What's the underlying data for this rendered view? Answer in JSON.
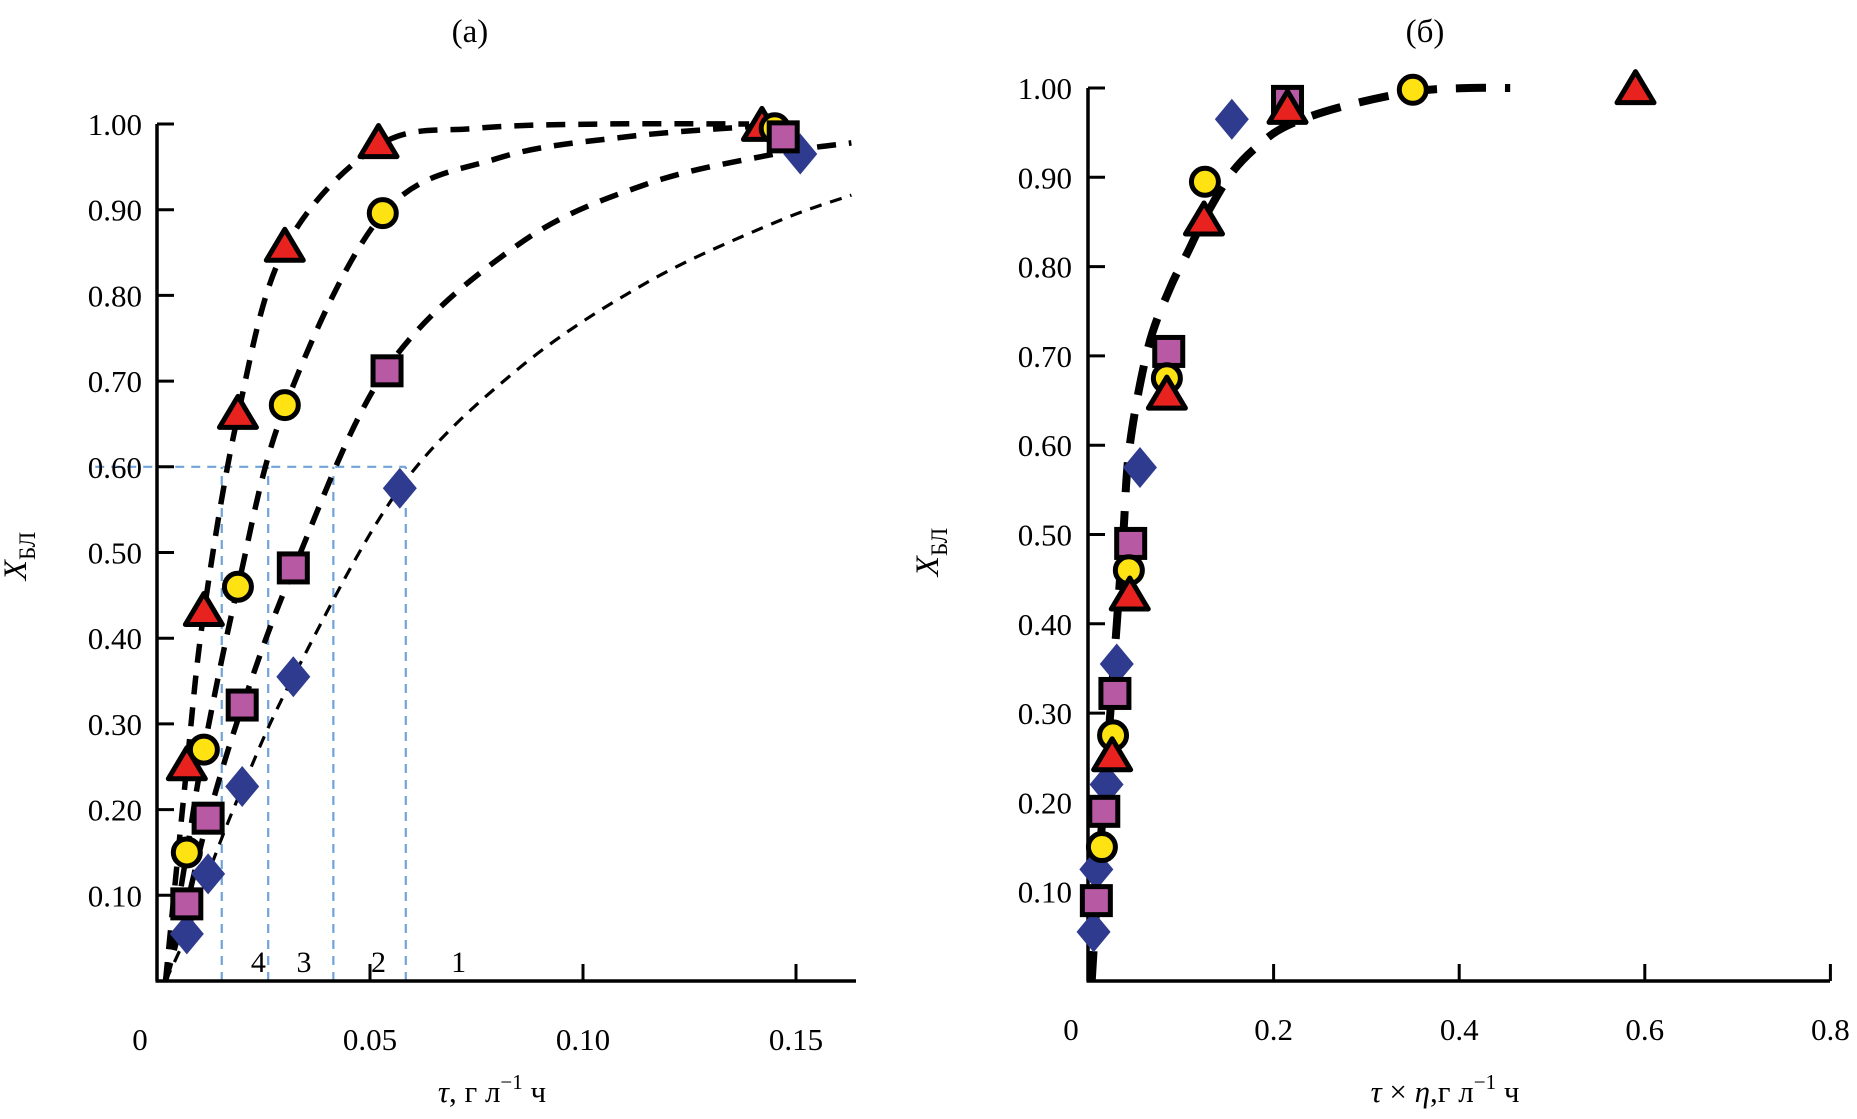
{
  "figure": {
    "background": "#ffffff",
    "colors": {
      "series1_diamond": "#2E3B8F",
      "series2_square": "#B859A4",
      "series3_circle": "#FFE212",
      "series4_triangle": "#E8231F",
      "curve": "#000000",
      "guide": "#6FA3D9",
      "axis": "#000000"
    }
  },
  "chart_data": [
    {
      "id": "a",
      "type": "scatter",
      "title": "(а)",
      "xlabel": "τ, г л⁻¹ ч",
      "xlabel_parts": {
        "tau": "τ",
        "pre": ", г л",
        "sup": "−1",
        "post": " ч"
      },
      "ylabel": "ХБЛ",
      "ylabel_parts": {
        "main": "X",
        "sub": "БЛ"
      },
      "xlim": [
        0,
        0.163
      ],
      "ylim": [
        0,
        1.0
      ],
      "grid": false,
      "legend": "none",
      "x_ticks": [
        {
          "v": 0,
          "label": "0",
          "mark": false
        },
        {
          "v": 0.05,
          "label": "0.05",
          "mark": true
        },
        {
          "v": 0.1,
          "label": "0.10",
          "mark": true
        },
        {
          "v": 0.15,
          "label": "0.15",
          "mark": true
        }
      ],
      "y_ticks": [
        {
          "v": 0.1,
          "label": "0.10"
        },
        {
          "v": 0.2,
          "label": "0.20"
        },
        {
          "v": 0.3,
          "label": "0.30"
        },
        {
          "v": 0.4,
          "label": "0.40"
        },
        {
          "v": 0.5,
          "label": "0.50"
        },
        {
          "v": 0.6,
          "label": "0.60"
        },
        {
          "v": 0.7,
          "label": "0.70"
        },
        {
          "v": 0.8,
          "label": "0.80"
        },
        {
          "v": 0.9,
          "label": "0.90"
        },
        {
          "v": 1.0,
          "label": "1.00"
        }
      ],
      "series": [
        {
          "name": "1",
          "marker": "diamond",
          "color": "#2E3B8F",
          "points": [
            [
              0.007,
              0.055
            ],
            [
              0.012,
              0.125
            ],
            [
              0.02,
              0.227
            ],
            [
              0.032,
              0.355
            ],
            [
              0.057,
              0.575
            ],
            [
              0.151,
              0.965
            ]
          ]
        },
        {
          "name": "2",
          "marker": "square",
          "color": "#B859A4",
          "points": [
            [
              0.007,
              0.09
            ],
            [
              0.012,
              0.19
            ],
            [
              0.02,
              0.322
            ],
            [
              0.032,
              0.482
            ],
            [
              0.054,
              0.712
            ],
            [
              0.147,
              0.985
            ]
          ]
        },
        {
          "name": "3",
          "marker": "circle",
          "color": "#FFE212",
          "points": [
            [
              0.007,
              0.15
            ],
            [
              0.011,
              0.27
            ],
            [
              0.019,
              0.46
            ],
            [
              0.03,
              0.672
            ],
            [
              0.053,
              0.896
            ],
            [
              0.145,
              0.995
            ]
          ]
        },
        {
          "name": "4",
          "marker": "triangle",
          "color": "#E8231F",
          "points": [
            [
              0.007,
              0.25
            ],
            [
              0.011,
              0.43
            ],
            [
              0.019,
              0.66
            ],
            [
              0.03,
              0.855
            ],
            [
              0.052,
              0.976
            ],
            [
              0.142,
              0.996
            ]
          ]
        }
      ],
      "paint_order": [
        "4",
        "3",
        "1",
        "2"
      ],
      "curves": [
        {
          "for": "4",
          "width": 5.5,
          "dash": "19 13",
          "points": [
            [
              0.002,
              0
            ],
            [
              0.007,
              0.25
            ],
            [
              0.011,
              0.43
            ],
            [
              0.019,
              0.66
            ],
            [
              0.03,
              0.855
            ],
            [
              0.052,
              0.975
            ],
            [
              0.075,
              0.995
            ],
            [
              0.105,
              1.0
            ],
            [
              0.139,
              1.0
            ]
          ]
        },
        {
          "for": "3",
          "width": 5.5,
          "dash": "19 13",
          "points": [
            [
              0.002,
              0
            ],
            [
              0.007,
              0.15
            ],
            [
              0.011,
              0.27
            ],
            [
              0.019,
              0.46
            ],
            [
              0.03,
              0.67
            ],
            [
              0.053,
              0.895
            ],
            [
              0.08,
              0.96
            ],
            [
              0.11,
              0.985
            ],
            [
              0.142,
              0.998
            ]
          ]
        },
        {
          "for": "2",
          "width": 5.5,
          "dash": "19 13",
          "points": [
            [
              0.002,
              0
            ],
            [
              0.007,
              0.09
            ],
            [
              0.012,
              0.19
            ],
            [
              0.02,
              0.32
            ],
            [
              0.032,
              0.48
            ],
            [
              0.054,
              0.715
            ],
            [
              0.085,
              0.86
            ],
            [
              0.115,
              0.93
            ],
            [
              0.145,
              0.965
            ],
            [
              0.163,
              0.978
            ]
          ]
        },
        {
          "for": "1",
          "width": 3.2,
          "dash": "12 9",
          "points": [
            [
              0.002,
              0
            ],
            [
              0.007,
              0.055
            ],
            [
              0.012,
              0.125
            ],
            [
              0.02,
              0.225
            ],
            [
              0.032,
              0.355
            ],
            [
              0.057,
              0.575
            ],
            [
              0.085,
              0.715
            ],
            [
              0.115,
              0.815
            ],
            [
              0.145,
              0.885
            ],
            [
              0.163,
              0.917
            ]
          ]
        }
      ],
      "guides": {
        "color": "#6FA3D9",
        "h_line": {
          "y": 0.6,
          "x_from": -0.0145,
          "x_to": 0.0584
        },
        "v_lines": [
          {
            "x": 0.0152
          },
          {
            "x": 0.0261
          },
          {
            "x": 0.0414
          },
          {
            "x": 0.0584
          }
        ],
        "labels": [
          {
            "text": "4",
            "x": 0.0238,
            "y": 0.022
          },
          {
            "text": "3",
            "x": 0.0345,
            "y": 0.022
          },
          {
            "text": "2",
            "x": 0.052,
            "y": 0.022
          },
          {
            "text": "1",
            "x": 0.0708,
            "y": 0.022
          }
        ]
      }
    },
    {
      "id": "b",
      "type": "scatter",
      "title": "(б)",
      "xlabel": "τ × η,г л⁻¹ ч",
      "xlabel_parts": {
        "tau": "τ",
        "mid": " × ",
        "eta": "η",
        "pre": ",г л",
        "sup": "−1",
        "post": " ч"
      },
      "ylabel": "ХБЛ",
      "ylabel_parts": {
        "main": "X",
        "sub": "БЛ"
      },
      "xlim": [
        0,
        0.8
      ],
      "ylim": [
        0,
        1.0
      ],
      "grid": false,
      "legend": "none",
      "x_ticks": [
        {
          "v": 0,
          "label": "0",
          "mark": false
        },
        {
          "v": 0.2,
          "label": "0.2",
          "mark": true
        },
        {
          "v": 0.4,
          "label": "0.4",
          "mark": true
        },
        {
          "v": 0.6,
          "label": "0.6",
          "mark": true
        },
        {
          "v": 0.8,
          "label": "0.8",
          "mark": true
        }
      ],
      "y_ticks": [
        {
          "v": 0.1,
          "label": "0.10"
        },
        {
          "v": 0.2,
          "label": "0.20"
        },
        {
          "v": 0.3,
          "label": "0.30"
        },
        {
          "v": 0.4,
          "label": "0.40"
        },
        {
          "v": 0.5,
          "label": "0.50"
        },
        {
          "v": 0.6,
          "label": "0.60"
        },
        {
          "v": 0.7,
          "label": "0.70"
        },
        {
          "v": 0.8,
          "label": "0.80"
        },
        {
          "v": 0.9,
          "label": "0.90"
        },
        {
          "v": 1.0,
          "label": "1.00"
        }
      ],
      "series": [
        {
          "name": "1",
          "marker": "diamond",
          "color": "#2E3B8F",
          "points": [
            [
              0.006,
              0.055
            ],
            [
              0.009,
              0.125
            ],
            [
              0.02,
              0.22
            ],
            [
              0.031,
              0.355
            ],
            [
              0.056,
              0.575
            ],
            [
              0.155,
              0.965
            ]
          ]
        },
        {
          "name": "2",
          "marker": "square",
          "color": "#B859A4",
          "points": [
            [
              0.009,
              0.09
            ],
            [
              0.017,
              0.19
            ],
            [
              0.029,
              0.322
            ],
            [
              0.046,
              0.49
            ],
            [
              0.087,
              0.705
            ],
            [
              0.215,
              0.985
            ]
          ]
        },
        {
          "name": "3",
          "marker": "circle",
          "color": "#FFE212",
          "points": [
            [
              0.015,
              0.15
            ],
            [
              0.027,
              0.275
            ],
            [
              0.044,
              0.46
            ],
            [
              0.085,
              0.675
            ],
            [
              0.126,
              0.895
            ],
            [
              0.35,
              0.998
            ]
          ]
        },
        {
          "name": "4",
          "marker": "triangle",
          "color": "#E8231F",
          "points": [
            [
              0.026,
              0.25
            ],
            [
              0.045,
              0.43
            ],
            [
              0.085,
              0.655
            ],
            [
              0.125,
              0.85
            ],
            [
              0.215,
              0.975
            ],
            [
              0.59,
              0.997
            ]
          ]
        }
      ],
      "paint_order": [
        "1",
        "2",
        "3",
        "4"
      ],
      "curves": [
        {
          "for": "master",
          "width": 8,
          "dash": "30 19",
          "points": [
            [
              0.004,
              0
            ],
            [
              0.01,
              0.1
            ],
            [
              0.016,
              0.19
            ],
            [
              0.024,
              0.3
            ],
            [
              0.031,
              0.4
            ],
            [
              0.038,
              0.5
            ],
            [
              0.045,
              0.6
            ],
            [
              0.065,
              0.71
            ],
            [
              0.088,
              0.775
            ],
            [
              0.107,
              0.815
            ],
            [
              0.126,
              0.855
            ],
            [
              0.155,
              0.905
            ],
            [
              0.185,
              0.937
            ],
            [
              0.215,
              0.958
            ],
            [
              0.27,
              0.978
            ],
            [
              0.35,
              0.996
            ],
            [
              0.41,
              1.0
            ],
            [
              0.455,
              1.0
            ]
          ]
        }
      ],
      "guides": null
    }
  ]
}
